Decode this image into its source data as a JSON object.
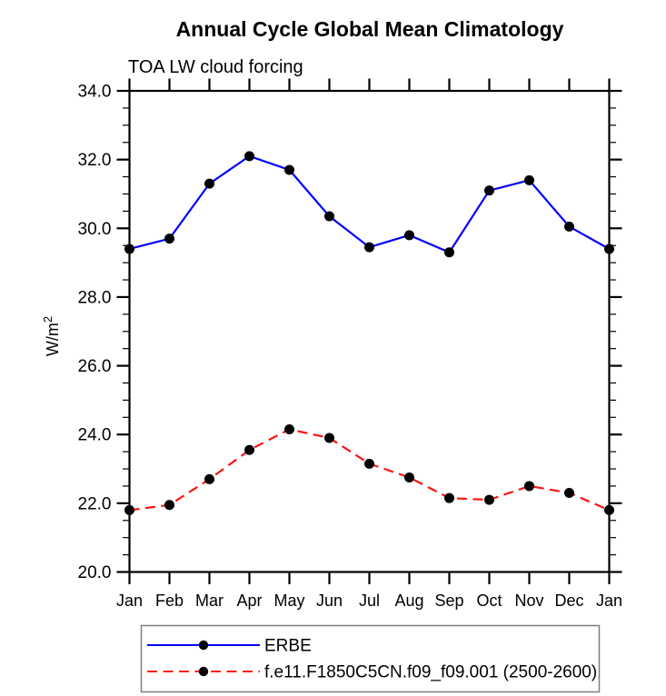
{
  "title": "Annual Cycle Global Mean Climatology",
  "subtitle": "TOA LW cloud forcing",
  "ylabel": "W/m²",
  "colors": {
    "erbe_line": "#0000ff",
    "model_line": "#fb1412",
    "marker": "#000000",
    "axis": "#000000",
    "legend_border": "#7f7f7f",
    "background": "#ffffff"
  },
  "chart_data": {
    "type": "line",
    "categories": [
      "Jan",
      "Feb",
      "Mar",
      "Apr",
      "May",
      "Jun",
      "Jul",
      "Aug",
      "Sep",
      "Oct",
      "Nov",
      "Dec",
      "Jan"
    ],
    "series": [
      {
        "name": "ERBE",
        "color": "#0000ff",
        "line_style": "solid",
        "marker": "filled-circle",
        "values": [
          29.4,
          29.7,
          31.3,
          32.1,
          31.7,
          30.35,
          29.45,
          29.8,
          29.3,
          31.1,
          31.4,
          30.05,
          29.4
        ]
      },
      {
        "name": "f.e11.F1850C5CN.f09_f09.001 (2500-2600)",
        "color": "#fb1412",
        "line_style": "dashed",
        "marker": "filled-circle",
        "values": [
          21.8,
          21.95,
          22.7,
          23.55,
          24.15,
          23.9,
          23.15,
          22.75,
          22.15,
          22.1,
          22.5,
          22.3,
          21.8
        ]
      }
    ],
    "ylim": [
      20.0,
      34.0
    ],
    "y_ticks": [
      {
        "value": 34.0,
        "label": "34.0"
      },
      {
        "value": 32.0,
        "label": "32.0"
      },
      {
        "value": 30.0,
        "label": "30.0"
      },
      {
        "value": 28.0,
        "label": "28.0"
      },
      {
        "value": 26.0,
        "label": "26.0"
      },
      {
        "value": 24.0,
        "label": "24.0"
      },
      {
        "value": 22.0,
        "label": "22.0"
      },
      {
        "value": 20.0,
        "label": "20.0"
      }
    ],
    "y_minor_tick_step": 0.5,
    "grid": false,
    "legend_position": "bottom-left"
  }
}
